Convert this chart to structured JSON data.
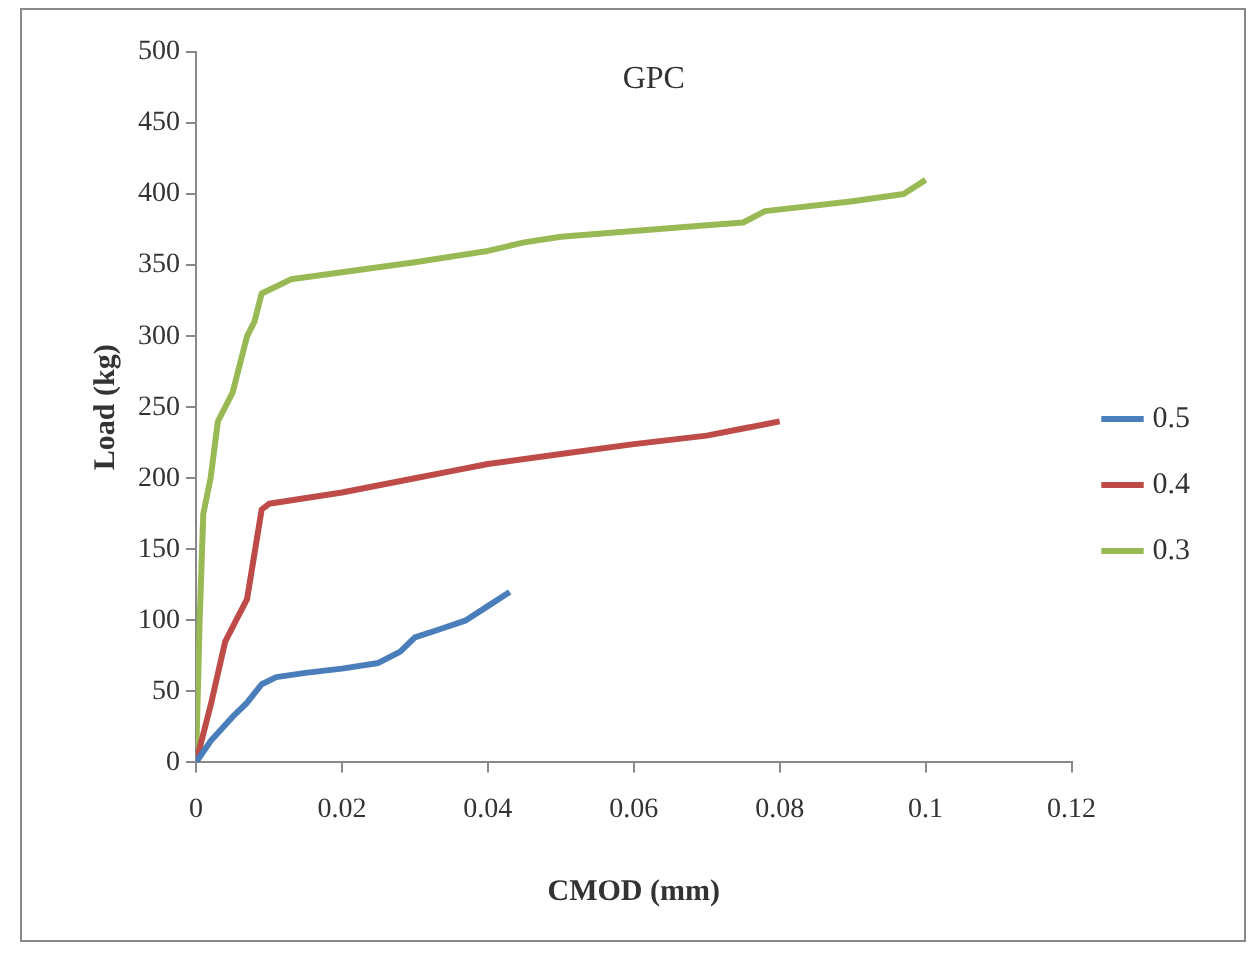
{
  "chart_data": {
    "type": "line",
    "title": "GPC",
    "xlabel": "CMOD (mm)",
    "ylabel": "Load (kg)",
    "xlim": [
      0,
      0.12
    ],
    "xticks": [
      0,
      0.02,
      0.04,
      0.06,
      0.08,
      0.1,
      0.12
    ],
    "ylim": [
      0,
      500
    ],
    "yticks": [
      0,
      50,
      100,
      150,
      200,
      250,
      300,
      350,
      400,
      450,
      500
    ],
    "grid": false,
    "legend": "right",
    "marker": "none",
    "line_style": "solid",
    "series": [
      {
        "name": "0.5",
        "color": "#4a7ebb",
        "x": [
          0,
          0.002,
          0.005,
          0.007,
          0.009,
          0.011,
          0.015,
          0.02,
          0.025,
          0.028,
          0.03,
          0.033,
          0.037,
          0.04,
          0.043
        ],
        "values": [
          0,
          15,
          32,
          42,
          55,
          60,
          63,
          66,
          70,
          78,
          88,
          93,
          100,
          110,
          120
        ]
      },
      {
        "name": "0.4",
        "color": "#be4b48",
        "x": [
          0,
          0.002,
          0.004,
          0.006,
          0.007,
          0.009,
          0.01,
          0.02,
          0.03,
          0.035,
          0.04,
          0.05,
          0.06,
          0.07,
          0.075,
          0.08
        ],
        "values": [
          0,
          40,
          85,
          105,
          115,
          178,
          182,
          190,
          200,
          205,
          210,
          217,
          224,
          230,
          235,
          240
        ]
      },
      {
        "name": "0.3",
        "color": "#98b954",
        "x": [
          0,
          0.0005,
          0.001,
          0.002,
          0.003,
          0.005,
          0.007,
          0.008,
          0.009,
          0.011,
          0.013,
          0.02,
          0.03,
          0.04,
          0.045,
          0.05,
          0.06,
          0.07,
          0.075,
          0.078,
          0.09,
          0.097,
          0.1
        ],
        "values": [
          0,
          100,
          175,
          200,
          240,
          260,
          300,
          310,
          330,
          335,
          340,
          345,
          352,
          360,
          366,
          370,
          374,
          378,
          380,
          388,
          395,
          400,
          410
        ]
      }
    ]
  }
}
